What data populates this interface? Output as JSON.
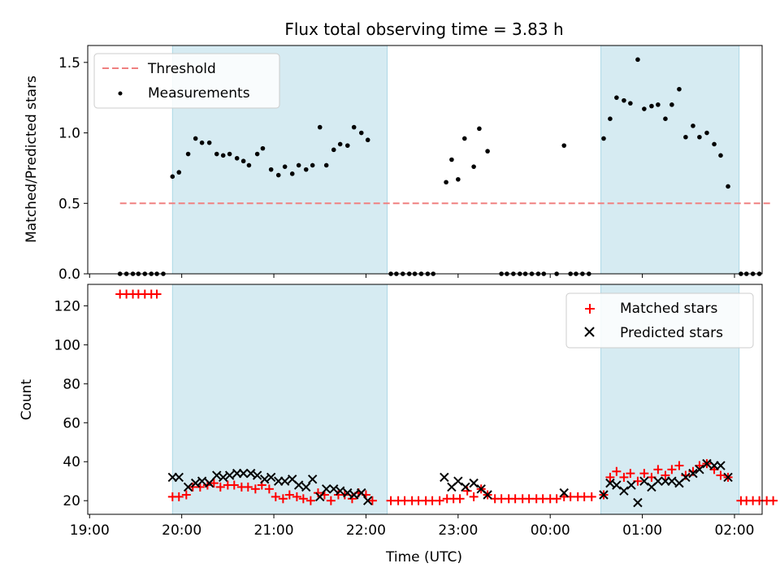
{
  "chart_data": [
    {
      "type": "scatter",
      "title": "Flux total observing time = 3.83 h",
      "ylabel": "Matched/Predicted stars",
      "xlabel": "",
      "x_domain": [
        -0.02,
        7.3
      ],
      "ylim": [
        0,
        1.62
      ],
      "x_ticks": [
        0,
        1,
        2,
        3,
        4,
        5,
        6,
        7
      ],
      "y_ticks": [
        0.0,
        0.5,
        1.0,
        1.5
      ],
      "y_tick_labels": [
        "0.0",
        "0.5",
        "1.0",
        "1.5"
      ],
      "shaded_intervals": [
        [
          0.9,
          3.23
        ],
        [
          5.55,
          7.05
        ]
      ],
      "legend": {
        "position": "top-left",
        "entries": [
          "Threshold",
          "Measurements"
        ]
      },
      "threshold": {
        "name": "Threshold",
        "value": 0.5,
        "x_range": [
          0.33,
          7.4
        ],
        "color": "#f08080"
      },
      "series": [
        {
          "name": "Measurements",
          "color": "#000000",
          "points": [
            [
              0.33,
              0
            ],
            [
              0.4,
              0
            ],
            [
              0.47,
              0
            ],
            [
              0.53,
              0
            ],
            [
              0.6,
              0
            ],
            [
              0.67,
              0
            ],
            [
              0.73,
              0
            ],
            [
              0.8,
              0
            ],
            [
              0.9,
              0.69
            ],
            [
              0.97,
              0.72
            ],
            [
              1.07,
              0.85
            ],
            [
              1.15,
              0.96
            ],
            [
              1.22,
              0.93
            ],
            [
              1.3,
              0.93
            ],
            [
              1.38,
              0.85
            ],
            [
              1.45,
              0.84
            ],
            [
              1.52,
              0.85
            ],
            [
              1.6,
              0.82
            ],
            [
              1.67,
              0.8
            ],
            [
              1.73,
              0.77
            ],
            [
              1.82,
              0.85
            ],
            [
              1.88,
              0.89
            ],
            [
              1.97,
              0.74
            ],
            [
              2.05,
              0.7
            ],
            [
              2.12,
              0.76
            ],
            [
              2.2,
              0.71
            ],
            [
              2.27,
              0.77
            ],
            [
              2.35,
              0.74
            ],
            [
              2.42,
              0.77
            ],
            [
              2.5,
              1.04
            ],
            [
              2.57,
              0.77
            ],
            [
              2.65,
              0.88
            ],
            [
              2.72,
              0.92
            ],
            [
              2.8,
              0.91
            ],
            [
              2.87,
              1.04
            ],
            [
              2.95,
              1.0
            ],
            [
              3.02,
              0.95
            ],
            [
              3.27,
              0
            ],
            [
              3.33,
              0
            ],
            [
              3.4,
              0
            ],
            [
              3.47,
              0
            ],
            [
              3.53,
              0
            ],
            [
              3.6,
              0
            ],
            [
              3.67,
              0
            ],
            [
              3.73,
              0
            ],
            [
              3.87,
              0.65
            ],
            [
              3.93,
              0.81
            ],
            [
              4.0,
              0.67
            ],
            [
              4.07,
              0.96
            ],
            [
              4.17,
              0.76
            ],
            [
              4.23,
              1.03
            ],
            [
              4.32,
              0.87
            ],
            [
              4.47,
              0
            ],
            [
              4.53,
              0
            ],
            [
              4.6,
              0
            ],
            [
              4.67,
              0
            ],
            [
              4.73,
              0
            ],
            [
              4.8,
              0
            ],
            [
              4.87,
              0
            ],
            [
              4.93,
              0
            ],
            [
              5.07,
              0
            ],
            [
              5.15,
              0.91
            ],
            [
              5.22,
              0
            ],
            [
              5.28,
              0
            ],
            [
              5.35,
              0
            ],
            [
              5.42,
              0
            ],
            [
              5.58,
              0.96
            ],
            [
              5.65,
              1.1
            ],
            [
              5.72,
              1.25
            ],
            [
              5.8,
              1.23
            ],
            [
              5.87,
              1.21
            ],
            [
              5.95,
              1.52
            ],
            [
              6.02,
              1.17
            ],
            [
              6.1,
              1.19
            ],
            [
              6.17,
              1.2
            ],
            [
              6.25,
              1.1
            ],
            [
              6.32,
              1.2
            ],
            [
              6.4,
              1.31
            ],
            [
              6.47,
              0.97
            ],
            [
              6.55,
              1.05
            ],
            [
              6.62,
              0.97
            ],
            [
              6.7,
              1.0
            ],
            [
              6.78,
              0.92
            ],
            [
              6.85,
              0.84
            ],
            [
              6.93,
              0.62
            ],
            [
              7.07,
              0
            ],
            [
              7.13,
              0
            ],
            [
              7.2,
              0
            ],
            [
              7.27,
              0
            ]
          ]
        }
      ]
    },
    {
      "type": "scatter",
      "title": "",
      "xlabel": "Time (UTC)",
      "ylabel": "Count",
      "x_domain": [
        -0.02,
        7.3
      ],
      "ylim": [
        13,
        131
      ],
      "x_ticks": [
        0,
        1,
        2,
        3,
        4,
        5,
        6,
        7
      ],
      "x_tick_labels": [
        "19:00",
        "20:00",
        "21:00",
        "22:00",
        "23:00",
        "00:00",
        "01:00",
        "02:00"
      ],
      "y_ticks": [
        20,
        40,
        60,
        80,
        100,
        120
      ],
      "y_tick_labels": [
        "20",
        "40",
        "60",
        "80",
        "100",
        "120"
      ],
      "shaded_intervals": [
        [
          0.9,
          3.23
        ],
        [
          5.55,
          7.05
        ]
      ],
      "legend": {
        "position": "top-right",
        "entries": [
          "Matched stars",
          "Predicted stars"
        ]
      },
      "series": [
        {
          "name": "Matched stars",
          "marker": "+",
          "color": "#ff0000",
          "points": [
            [
              0.33,
              126
            ],
            [
              0.4,
              126
            ],
            [
              0.47,
              126
            ],
            [
              0.53,
              126
            ],
            [
              0.6,
              126
            ],
            [
              0.67,
              126
            ],
            [
              0.73,
              126
            ],
            [
              0.9,
              22
            ],
            [
              0.97,
              22
            ],
            [
              1.05,
              23
            ],
            [
              1.12,
              27
            ],
            [
              1.2,
              27
            ],
            [
              1.28,
              28
            ],
            [
              1.35,
              29
            ],
            [
              1.42,
              27
            ],
            [
              1.5,
              28
            ],
            [
              1.57,
              28
            ],
            [
              1.65,
              27
            ],
            [
              1.72,
              27
            ],
            [
              1.8,
              26
            ],
            [
              1.87,
              28
            ],
            [
              1.95,
              26
            ],
            [
              2.02,
              22
            ],
            [
              2.1,
              21
            ],
            [
              2.17,
              23
            ],
            [
              2.25,
              22
            ],
            [
              2.32,
              21
            ],
            [
              2.4,
              20
            ],
            [
              2.48,
              24
            ],
            [
              2.55,
              23
            ],
            [
              2.62,
              20
            ],
            [
              2.7,
              23
            ],
            [
              2.77,
              23
            ],
            [
              2.85,
              21
            ],
            [
              2.92,
              24
            ],
            [
              3.0,
              23
            ],
            [
              3.07,
              20
            ],
            [
              3.27,
              20
            ],
            [
              3.35,
              20
            ],
            [
              3.42,
              20
            ],
            [
              3.5,
              20
            ],
            [
              3.57,
              20
            ],
            [
              3.65,
              20
            ],
            [
              3.72,
              20
            ],
            [
              3.8,
              20
            ],
            [
              3.88,
              21
            ],
            [
              3.95,
              21
            ],
            [
              4.02,
              21
            ],
            [
              4.1,
              25
            ],
            [
              4.17,
              22
            ],
            [
              4.25,
              26
            ],
            [
              4.32,
              23
            ],
            [
              4.4,
              21
            ],
            [
              4.47,
              21
            ],
            [
              4.55,
              21
            ],
            [
              4.62,
              21
            ],
            [
              4.7,
              21
            ],
            [
              4.77,
              21
            ],
            [
              4.85,
              21
            ],
            [
              4.92,
              21
            ],
            [
              5.0,
              21
            ],
            [
              5.07,
              21
            ],
            [
              5.15,
              22
            ],
            [
              5.22,
              22
            ],
            [
              5.3,
              22
            ],
            [
              5.37,
              22
            ],
            [
              5.45,
              22
            ],
            [
              5.58,
              23
            ],
            [
              5.65,
              32
            ],
            [
              5.72,
              35
            ],
            [
              5.8,
              32
            ],
            [
              5.87,
              34
            ],
            [
              5.95,
              30
            ],
            [
              6.02,
              34
            ],
            [
              6.1,
              32
            ],
            [
              6.17,
              36
            ],
            [
              6.25,
              33
            ],
            [
              6.32,
              36
            ],
            [
              6.4,
              38
            ],
            [
              6.47,
              33
            ],
            [
              6.55,
              35
            ],
            [
              6.62,
              38
            ],
            [
              6.7,
              39
            ],
            [
              6.78,
              36
            ],
            [
              6.85,
              33
            ],
            [
              6.93,
              32
            ],
            [
              7.07,
              20
            ],
            [
              7.13,
              20
            ],
            [
              7.2,
              20
            ],
            [
              7.27,
              20
            ],
            [
              7.35,
              20
            ],
            [
              7.42,
              20
            ]
          ]
        },
        {
          "name": "Predicted stars",
          "marker": "x",
          "color": "#000000",
          "points": [
            [
              0.9,
              32
            ],
            [
              0.97,
              32
            ],
            [
              1.07,
              27
            ],
            [
              1.15,
              29
            ],
            [
              1.22,
              30
            ],
            [
              1.3,
              29
            ],
            [
              1.38,
              33
            ],
            [
              1.45,
              32
            ],
            [
              1.52,
              33
            ],
            [
              1.6,
              34
            ],
            [
              1.67,
              34
            ],
            [
              1.75,
              34
            ],
            [
              1.82,
              33
            ],
            [
              1.9,
              31
            ],
            [
              1.97,
              32
            ],
            [
              2.05,
              30
            ],
            [
              2.12,
              30
            ],
            [
              2.2,
              31
            ],
            [
              2.27,
              28
            ],
            [
              2.35,
              27
            ],
            [
              2.42,
              31
            ],
            [
              2.5,
              22
            ],
            [
              2.57,
              26
            ],
            [
              2.65,
              26
            ],
            [
              2.72,
              25
            ],
            [
              2.8,
              24
            ],
            [
              2.87,
              23
            ],
            [
              2.95,
              24
            ],
            [
              3.02,
              20
            ],
            [
              3.85,
              32
            ],
            [
              3.93,
              27
            ],
            [
              4.0,
              30
            ],
            [
              4.08,
              27
            ],
            [
              4.17,
              29
            ],
            [
              4.25,
              26
            ],
            [
              4.32,
              23
            ],
            [
              5.15,
              24
            ],
            [
              5.58,
              23
            ],
            [
              5.65,
              29
            ],
            [
              5.72,
              28
            ],
            [
              5.8,
              25
            ],
            [
              5.88,
              28
            ],
            [
              5.95,
              19
            ],
            [
              6.02,
              30
            ],
            [
              6.1,
              27
            ],
            [
              6.17,
              30
            ],
            [
              6.25,
              30
            ],
            [
              6.32,
              30
            ],
            [
              6.4,
              29
            ],
            [
              6.47,
              32
            ],
            [
              6.55,
              34
            ],
            [
              6.62,
              36
            ],
            [
              6.7,
              39
            ],
            [
              6.78,
              38
            ],
            [
              6.85,
              38
            ],
            [
              6.93,
              32
            ]
          ]
        }
      ]
    }
  ]
}
